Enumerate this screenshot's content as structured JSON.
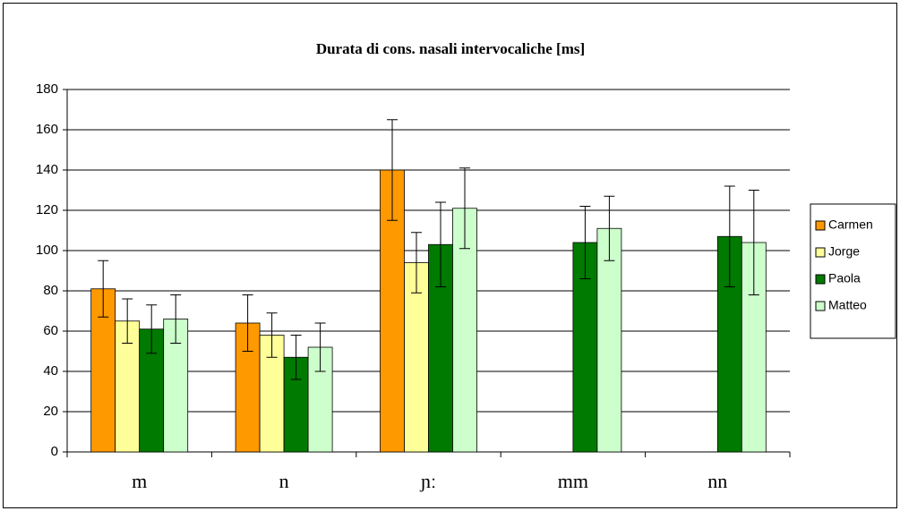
{
  "chart_data": {
    "type": "bar",
    "title": "Durata di cons. nasali intervocaliche [ms]",
    "categories": [
      "m",
      "n",
      "ɲː",
      "mm",
      "nn"
    ],
    "series": [
      {
        "name": "Carmen",
        "color": "#ff9900",
        "values": [
          81,
          64,
          140,
          null,
          null
        ],
        "errors": [
          14,
          14,
          25,
          null,
          null
        ]
      },
      {
        "name": "Jorge",
        "color": "#ffff99",
        "values": [
          65,
          58,
          94,
          null,
          null
        ],
        "errors": [
          11,
          11,
          15,
          null,
          null
        ]
      },
      {
        "name": "Paola",
        "color": "#007a00",
        "values": [
          61,
          47,
          103,
          104,
          107
        ],
        "errors": [
          12,
          11,
          21,
          18,
          25
        ]
      },
      {
        "name": "Matteo",
        "color": "#ccffcc",
        "values": [
          66,
          52,
          121,
          111,
          104
        ],
        "errors": [
          12,
          12,
          20,
          16,
          26
        ]
      }
    ],
    "ylim": [
      0,
      180
    ],
    "yticks": [
      0,
      20,
      40,
      60,
      80,
      100,
      120,
      140,
      160,
      180
    ],
    "grid": true,
    "legend": "right"
  }
}
